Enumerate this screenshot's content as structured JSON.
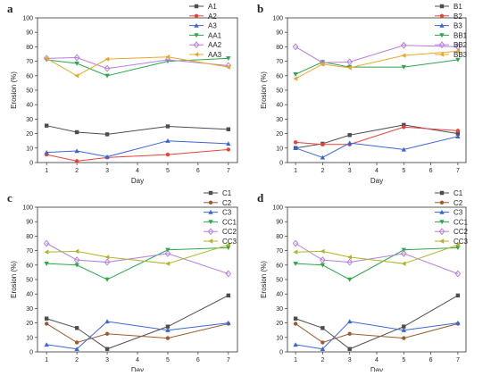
{
  "figure": {
    "panels": [
      "a",
      "b",
      "c",
      "d"
    ]
  },
  "chart_data": [
    {
      "panel": "a",
      "type": "line",
      "xlabel": "Day",
      "ylabel": "Erosion (%)",
      "x": [
        1,
        2,
        3,
        5,
        7
      ],
      "xticks": [
        1,
        2,
        3,
        4,
        5,
        6,
        7
      ],
      "ylim": [
        0,
        100
      ],
      "yticks": [
        0,
        10,
        20,
        30,
        40,
        50,
        60,
        70,
        80,
        90,
        100
      ],
      "legend_position": "top-right",
      "series": [
        {
          "name": "A1",
          "color": "#4d4d4d",
          "marker": "square",
          "values": [
            25.5,
            21.0,
            19.5,
            25.0,
            23.0
          ]
        },
        {
          "name": "A2",
          "color": "#e8423a",
          "marker": "circle",
          "values": [
            5.5,
            1.0,
            3.5,
            5.5,
            9.0
          ]
        },
        {
          "name": "A3",
          "color": "#3a66d4",
          "marker": "triangle-up",
          "values": [
            7.0,
            8.0,
            4.0,
            15.0,
            13.0
          ]
        },
        {
          "name": "AA1",
          "color": "#2ba84a",
          "marker": "triangle-down",
          "values": [
            71.0,
            68.5,
            60.0,
            70.0,
            72.0
          ]
        },
        {
          "name": "AA2",
          "color": "#b57ee0",
          "marker": "diamond",
          "values": [
            72.0,
            72.5,
            65.0,
            71.0,
            67.0
          ]
        },
        {
          "name": "AA3",
          "color": "#e8a92b",
          "marker": "triangle-left",
          "values": [
            72.0,
            60.0,
            71.5,
            73.0,
            66.0
          ]
        }
      ]
    },
    {
      "panel": "b",
      "type": "line",
      "xlabel": "Day",
      "ylabel": "Erosion (%)",
      "x": [
        1,
        2,
        3,
        5,
        7
      ],
      "xticks": [
        1,
        2,
        3,
        4,
        5,
        6,
        7
      ],
      "ylim": [
        0,
        100
      ],
      "yticks": [
        0,
        10,
        20,
        30,
        40,
        50,
        60,
        70,
        80,
        90,
        100
      ],
      "legend_position": "top-right",
      "series": [
        {
          "name": "B1",
          "color": "#4d4d4d",
          "marker": "square",
          "values": [
            10.0,
            13.0,
            19.0,
            26.0,
            20.0
          ]
        },
        {
          "name": "B2",
          "color": "#e8423a",
          "marker": "circle",
          "values": [
            14.0,
            12.5,
            12.5,
            24.5,
            22.0
          ]
        },
        {
          "name": "B3",
          "color": "#3a66d4",
          "marker": "triangle-up",
          "values": [
            10.0,
            3.5,
            13.5,
            9.0,
            18.0
          ]
        },
        {
          "name": "BB1",
          "color": "#2ba84a",
          "marker": "triangle-down",
          "values": [
            61.0,
            69.5,
            66.0,
            66.0,
            71.0
          ]
        },
        {
          "name": "BB2",
          "color": "#b57ee0",
          "marker": "diamond",
          "values": [
            80.0,
            69.0,
            69.5,
            81.0,
            80.0
          ]
        },
        {
          "name": "BB3",
          "color": "#e8a92b",
          "marker": "triangle-left",
          "values": [
            58.0,
            68.0,
            65.5,
            74.0,
            77.0
          ]
        }
      ]
    },
    {
      "panel": "c",
      "type": "line",
      "xlabel": "Day",
      "ylabel": "Erosion (%)",
      "x": [
        1,
        2,
        3,
        5,
        7
      ],
      "xticks": [
        1,
        2,
        3,
        4,
        5,
        6,
        7
      ],
      "ylim": [
        0,
        100
      ],
      "yticks": [
        0,
        10,
        20,
        30,
        40,
        50,
        60,
        70,
        80,
        90,
        100
      ],
      "legend_position": "top-right",
      "series": [
        {
          "name": "C1",
          "color": "#4d4d4d",
          "marker": "square",
          "values": [
            23.0,
            16.5,
            2.0,
            17.5,
            39.0
          ]
        },
        {
          "name": "C2",
          "color": "#9c5a2e",
          "marker": "circle",
          "values": [
            19.5,
            6.5,
            12.5,
            9.5,
            19.5
          ]
        },
        {
          "name": "C3",
          "color": "#3a66d4",
          "marker": "triangle-up",
          "values": [
            5.0,
            2.0,
            21.0,
            15.0,
            20.0
          ]
        },
        {
          "name": "CC1",
          "color": "#2ba84a",
          "marker": "triangle-down",
          "values": [
            61.0,
            60.0,
            50.0,
            70.5,
            72.0
          ]
        },
        {
          "name": "CC2",
          "color": "#b57ee0",
          "marker": "diamond",
          "values": [
            75.0,
            63.5,
            62.0,
            68.0,
            54.0
          ]
        },
        {
          "name": "CC3",
          "color": "#b3b32b",
          "marker": "triangle-left",
          "values": [
            69.0,
            69.5,
            65.5,
            61.0,
            74.0
          ]
        }
      ]
    },
    {
      "panel": "d",
      "type": "line",
      "xlabel": "Day",
      "ylabel": "Erosion (%)",
      "x": [
        1,
        2,
        3,
        5,
        7
      ],
      "xticks": [
        1,
        2,
        3,
        4,
        5,
        6,
        7
      ],
      "ylim": [
        0,
        100
      ],
      "yticks": [
        0,
        10,
        20,
        30,
        40,
        50,
        60,
        70,
        80,
        90,
        100
      ],
      "legend_position": "top-right",
      "series": [
        {
          "name": "C1",
          "color": "#4d4d4d",
          "marker": "square",
          "values": [
            23.0,
            16.5,
            2.0,
            17.5,
            39.0
          ]
        },
        {
          "name": "C2",
          "color": "#9c5a2e",
          "marker": "circle",
          "values": [
            19.5,
            6.5,
            12.5,
            9.5,
            19.5
          ]
        },
        {
          "name": "C3",
          "color": "#3a66d4",
          "marker": "triangle-up",
          "values": [
            5.0,
            2.0,
            21.0,
            15.0,
            20.0
          ]
        },
        {
          "name": "CC1",
          "color": "#2ba84a",
          "marker": "triangle-down",
          "values": [
            61.0,
            60.0,
            50.0,
            70.5,
            72.0
          ]
        },
        {
          "name": "CC2",
          "color": "#b57ee0",
          "marker": "diamond",
          "values": [
            75.0,
            63.5,
            62.0,
            68.0,
            54.0
          ]
        },
        {
          "name": "CC3",
          "color": "#b3b32b",
          "marker": "triangle-left",
          "values": [
            69.0,
            69.5,
            65.5,
            61.0,
            74.0
          ]
        }
      ]
    }
  ]
}
